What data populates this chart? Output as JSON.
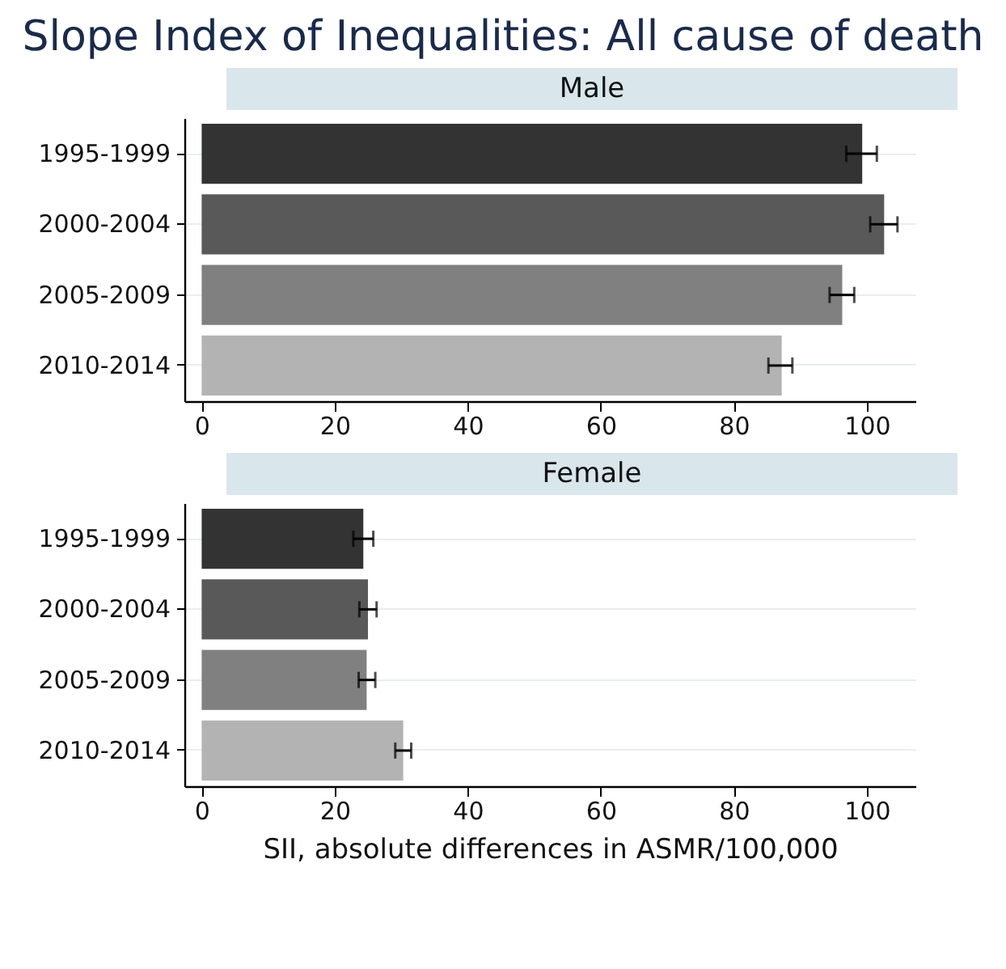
{
  "chart_data": [
    {
      "type": "bar",
      "title": "Slope Index of Inequalities: All cause of death",
      "subtitle": "Male",
      "orientation": "horizontal",
      "categories": [
        "1995-1999",
        "2000-2004",
        "2005-2009",
        "2010-2014"
      ],
      "values": [
        99.3,
        102.6,
        96.3,
        87.2
      ],
      "colors": [
        "#333333",
        "#595959",
        "#808080",
        "#b3b3b3"
      ],
      "errors": [
        [
          96.9,
          101.5
        ],
        [
          100.5,
          104.6
        ],
        [
          94.4,
          98.1
        ],
        [
          85.2,
          88.8
        ]
      ],
      "xlim": [
        -2.6,
        107.3
      ],
      "xticks": [
        0,
        20,
        40,
        60,
        80,
        100
      ],
      "grid": "y"
    },
    {
      "type": "bar",
      "subtitle": "Female",
      "xlabel": "SII, absolute differences in ASMR/100,000",
      "orientation": "horizontal",
      "categories": [
        "1995-1999",
        "2000-2004",
        "2005-2009",
        "2010-2014"
      ],
      "values": [
        24.3,
        25.0,
        24.8,
        30.3
      ],
      "colors": [
        "#333333",
        "#595959",
        "#808080",
        "#b3b3b3"
      ],
      "errors": [
        [
          22.8,
          25.8
        ],
        [
          23.7,
          26.3
        ],
        [
          23.6,
          26.1
        ],
        [
          29.1,
          31.5
        ]
      ],
      "xlim": [
        -2.6,
        107.3
      ],
      "xticks": [
        0,
        20,
        40,
        60,
        80,
        100
      ],
      "grid": "y"
    }
  ]
}
